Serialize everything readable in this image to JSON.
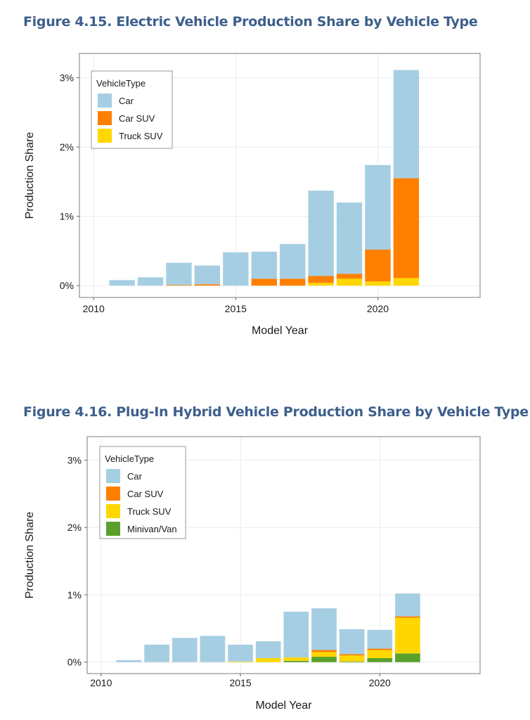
{
  "chart_data": [
    {
      "type": "bar",
      "stacked": true,
      "title": "Figure 4.15. Electric Vehicle Production Share by Vehicle Type",
      "xlabel": "Model Year",
      "ylabel": "Production Share",
      "x": [
        2011,
        2012,
        2013,
        2014,
        2015,
        2016,
        2017,
        2018,
        2019,
        2020,
        2021
      ],
      "xticks": [
        "2010",
        "2015",
        "2020"
      ],
      "xtick_values": [
        2010,
        2015,
        2020
      ],
      "xlim": [
        2009.5,
        2023.6
      ],
      "yticks": [
        "0%",
        "1%",
        "2%",
        "3%"
      ],
      "ytick_values": [
        0,
        1,
        2,
        3
      ],
      "ylim": [
        -0.17,
        3.35
      ],
      "grid": true,
      "legend": {
        "title": "VehicleType",
        "placement": "top-left"
      },
      "series": [
        {
          "name": "Truck SUV",
          "color": "#ffd700",
          "values": [
            0,
            0,
            0,
            0,
            0,
            0,
            0,
            0.04,
            0.1,
            0.06,
            0.11
          ]
        },
        {
          "name": "Car SUV",
          "color": "#ff7f00",
          "values": [
            0,
            0,
            0.01,
            0.02,
            0,
            0.1,
            0.1,
            0.1,
            0.07,
            0.46,
            1.44
          ]
        },
        {
          "name": "Car",
          "color": "#a6cee3",
          "values": [
            0.08,
            0.12,
            0.32,
            0.27,
            0.48,
            0.39,
            0.5,
            1.23,
            1.03,
            1.22,
            1.56
          ]
        }
      ],
      "legend_order": [
        "Car",
        "Car SUV",
        "Truck SUV"
      ]
    },
    {
      "type": "bar",
      "stacked": true,
      "title": "Figure 4.16. Plug-In Hybrid Vehicle Production Share by Vehicle Type",
      "xlabel": "Model Year",
      "ylabel": "Production Share",
      "x": [
        2011,
        2012,
        2013,
        2014,
        2015,
        2016,
        2017,
        2018,
        2019,
        2020,
        2021
      ],
      "xticks": [
        "2010",
        "2015",
        "2020"
      ],
      "xtick_values": [
        2010,
        2015,
        2020
      ],
      "xlim": [
        2009.5,
        2023.6
      ],
      "yticks": [
        "0%",
        "1%",
        "2%",
        "3%"
      ],
      "ytick_values": [
        0,
        1,
        2,
        3
      ],
      "ylim": [
        -0.17,
        3.35
      ],
      "grid": true,
      "legend": {
        "title": "VehicleType",
        "placement": "top-left"
      },
      "series": [
        {
          "name": "Minivan/Van",
          "color": "#5aa02c",
          "values": [
            0,
            0,
            0,
            0,
            0,
            0,
            0.02,
            0.08,
            0.01,
            0.06,
            0.13
          ]
        },
        {
          "name": "Truck SUV",
          "color": "#ffd700",
          "values": [
            0,
            0,
            0,
            0,
            0.01,
            0.06,
            0.05,
            0.07,
            0.09,
            0.12,
            0.53
          ]
        },
        {
          "name": "Car SUV",
          "color": "#ff7f00",
          "values": [
            0,
            0,
            0,
            0,
            0,
            0,
            0,
            0.03,
            0.02,
            0.02,
            0.02
          ]
        },
        {
          "name": "Car",
          "color": "#a6cee3",
          "values": [
            0.03,
            0.26,
            0.36,
            0.39,
            0.25,
            0.25,
            0.68,
            0.62,
            0.37,
            0.28,
            0.34
          ]
        }
      ],
      "legend_order": [
        "Car",
        "Car SUV",
        "Truck SUV",
        "Minivan/Van"
      ]
    }
  ]
}
